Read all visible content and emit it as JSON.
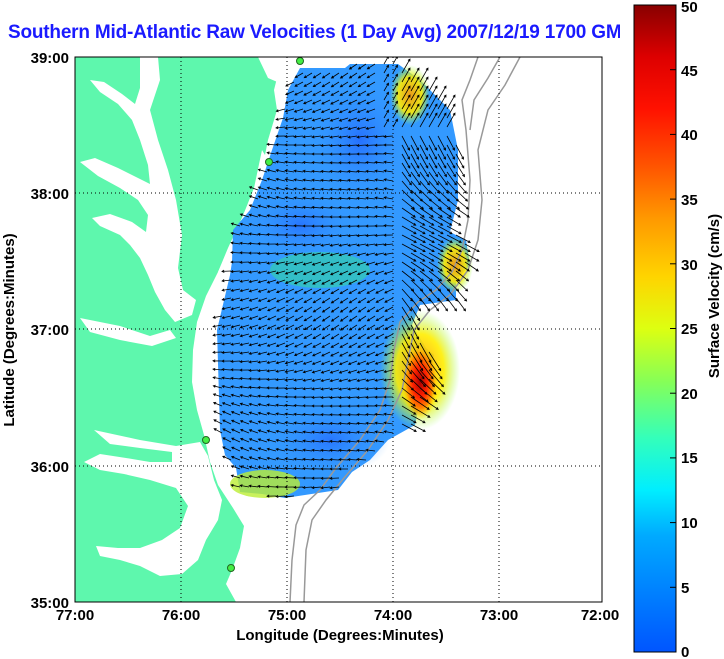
{
  "title": "Southern Mid-Atlantic Raw Velocities (1 Day Avg) 2007/12/19 1700 GMT",
  "colors": {
    "land": "#5ef7ad",
    "water": "#ffffff",
    "station": "#44ee44",
    "contour": "#999999",
    "title": "#1a1aff"
  },
  "map": {
    "xlabel": "Longitude (Degrees:Minutes)",
    "ylabel": "Latitude (Degrees:Minutes)",
    "x_ticks": [
      "77:00",
      "76:00",
      "75:00",
      "74:00",
      "73:00",
      "72:00"
    ],
    "y_ticks": [
      "39:00",
      "38:00",
      "37:00",
      "36:00",
      "35:00"
    ],
    "lon_range": [
      -77,
      -72
    ],
    "lat_range": [
      35,
      39
    ],
    "grid": "dotted"
  },
  "colorbar": {
    "label": "Surface Velocity (cm/s)",
    "ticks": [
      "0",
      "5",
      "10",
      "15",
      "20",
      "25",
      "30",
      "35",
      "40",
      "45",
      "50"
    ],
    "range": [
      0,
      50
    ]
  },
  "chart_data": {
    "type": "heatmap",
    "title": "Southern Mid-Atlantic Raw Velocities (1 Day Avg) 2007/12/19 1700 GMT",
    "xlabel": "Longitude (Degrees:Minutes)",
    "ylabel": "Latitude (Degrees:Minutes)",
    "colorbar_label": "Surface Velocity (cm/s)",
    "value_range": [
      0,
      50
    ],
    "xlim": [
      -77,
      -72
    ],
    "ylim": [
      35,
      39
    ],
    "stations": [
      {
        "lon": -75.13,
        "lat": 38.98
      },
      {
        "lon": -75.17,
        "lat": 38.22
      },
      {
        "lon": -75.73,
        "lat": 36.17
      },
      {
        "lon": -75.53,
        "lat": 35.26
      }
    ]
  }
}
